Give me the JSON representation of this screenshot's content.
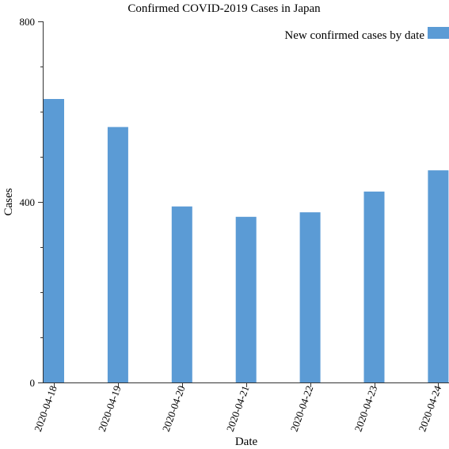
{
  "chart_data": {
    "type": "bar",
    "title": "Confirmed COVID-2019 Cases in Japan",
    "xlabel": "Date",
    "ylabel": "Cases",
    "categories": [
      "2020-04-18",
      "2020-04-19",
      "2020-04-20",
      "2020-04-21",
      "2020-04-22",
      "2020-04-23",
      "2020-04-24"
    ],
    "series": [
      {
        "name": "New confirmed cases by date",
        "values": [
          628,
          566,
          390,
          367,
          377,
          423,
          470
        ],
        "color": "#5b9bd5"
      }
    ],
    "ylim": [
      0,
      800
    ],
    "yticks": [
      0,
      400,
      800
    ],
    "yticks_labeled": [
      "0",
      "400",
      "800"
    ],
    "grid": false,
    "legend_position": "top-right",
    "x_tick_rotation": "rotated"
  }
}
